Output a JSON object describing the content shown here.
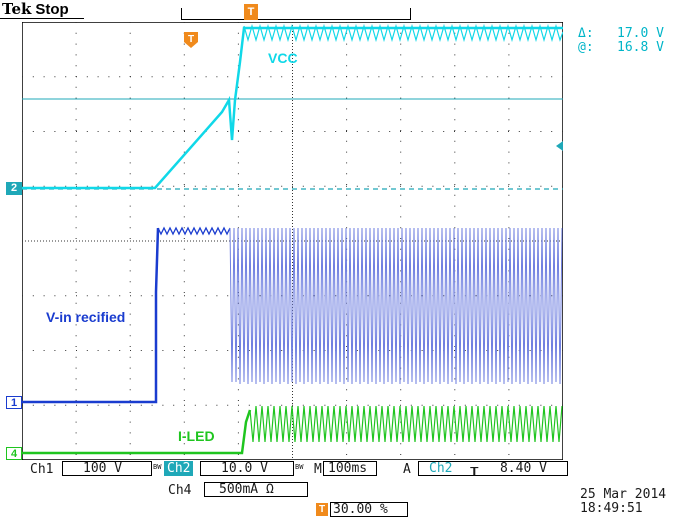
{
  "header": {
    "brand": "Tek",
    "acquisition_state": "Stop",
    "trigger_marker_glyph": "T"
  },
  "measurements": {
    "delta_symbol": "Δ:",
    "delta_value": "17.0 V",
    "at_symbol": "@:",
    "at_value": "16.8 V"
  },
  "annotations": {
    "vcc": "VCC",
    "vin": "V-in recified",
    "iled": "I-LED"
  },
  "channel_markers": {
    "ch1": "1",
    "ch2": "2",
    "ch4": "4"
  },
  "status_bar": {
    "ch1_label": "Ch1",
    "ch1_scale": "100 V",
    "ch1_bw": "BW",
    "ch2_label": "Ch2",
    "ch2_scale": "10.0 V",
    "ch2_bw": "BW",
    "timebase_prefix": "M",
    "timebase": "100ms",
    "trigger_mode": "A",
    "trigger_source": "Ch2",
    "trigger_slope": "┰",
    "trigger_level": "8.40 V",
    "ch4_label": "Ch4",
    "ch4_scale": "500mA Ω",
    "trigger_position": "30.00 %",
    "date": "25 Mar  2014",
    "time": "18:49:51"
  },
  "colors": {
    "ch1": "#1a3ccf",
    "ch2": "#10d8e8",
    "ch4": "#1fc51f",
    "trigger": "#f08a1c",
    "ch2_marker": "#1fa8b8",
    "ch1_marker": "#ffffff"
  }
}
